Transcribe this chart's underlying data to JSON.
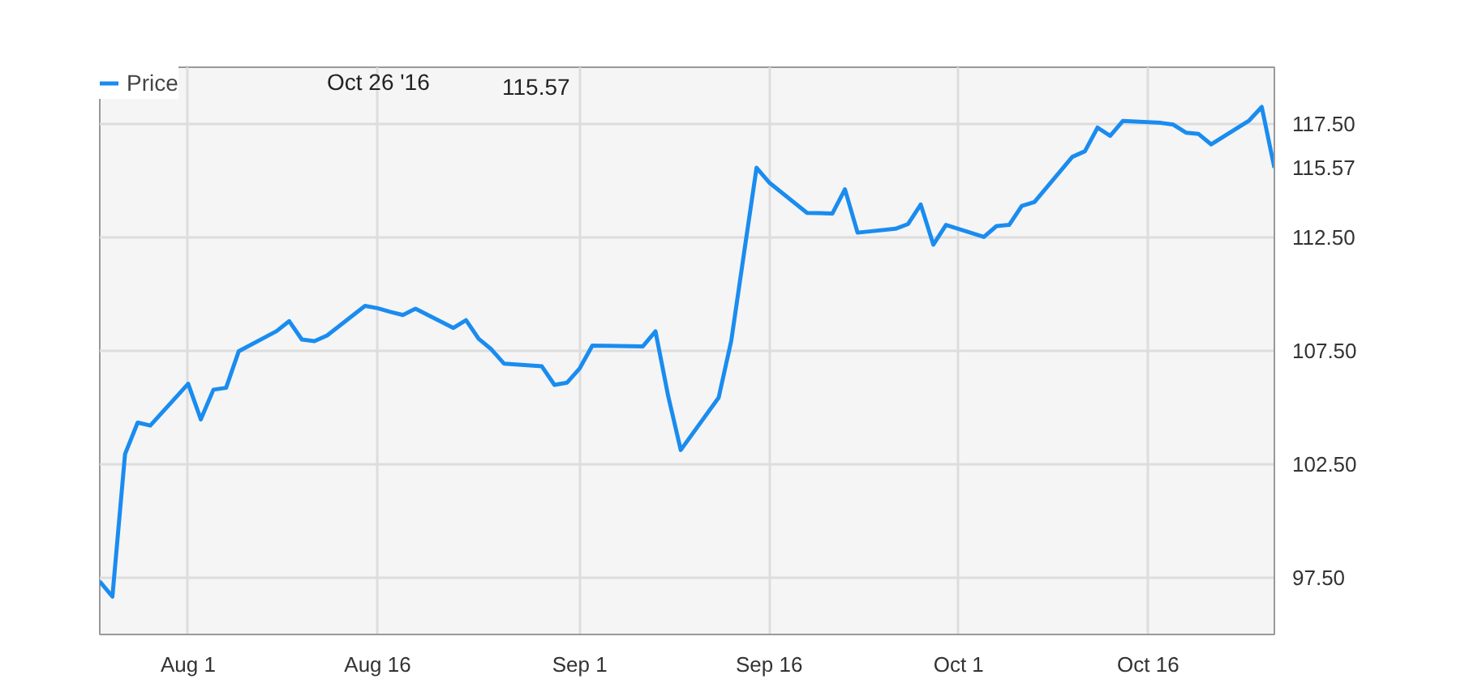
{
  "chart_data": {
    "type": "line",
    "x": [
      "2016-07-25",
      "2016-07-26",
      "2016-07-27",
      "2016-07-28",
      "2016-07-29",
      "2016-08-01",
      "2016-08-02",
      "2016-08-03",
      "2016-08-04",
      "2016-08-05",
      "2016-08-08",
      "2016-08-09",
      "2016-08-10",
      "2016-08-11",
      "2016-08-12",
      "2016-08-15",
      "2016-08-16",
      "2016-08-17",
      "2016-08-18",
      "2016-08-19",
      "2016-08-22",
      "2016-08-23",
      "2016-08-24",
      "2016-08-25",
      "2016-08-26",
      "2016-08-29",
      "2016-08-30",
      "2016-08-31",
      "2016-09-01",
      "2016-09-02",
      "2016-09-06",
      "2016-09-07",
      "2016-09-08",
      "2016-09-09",
      "2016-09-12",
      "2016-09-13",
      "2016-09-14",
      "2016-09-15",
      "2016-09-16",
      "2016-09-19",
      "2016-09-20",
      "2016-09-21",
      "2016-09-22",
      "2016-09-23",
      "2016-09-26",
      "2016-09-27",
      "2016-09-28",
      "2016-09-29",
      "2016-09-30",
      "2016-10-03",
      "2016-10-04",
      "2016-10-05",
      "2016-10-06",
      "2016-10-07",
      "2016-10-10",
      "2016-10-11",
      "2016-10-12",
      "2016-10-13",
      "2016-10-14",
      "2016-10-17",
      "2016-10-18",
      "2016-10-19",
      "2016-10-20",
      "2016-10-21",
      "2016-10-24",
      "2016-10-25",
      "2016-10-26"
    ],
    "series": [
      {
        "name": "Price",
        "color": "#1a8cf0",
        "values": [
          97.34,
          96.67,
          102.95,
          104.34,
          104.21,
          106.05,
          104.48,
          105.79,
          105.87,
          107.48,
          108.37,
          108.81,
          108.0,
          107.93,
          108.18,
          109.48,
          109.38,
          109.22,
          109.08,
          109.36,
          108.51,
          108.85,
          108.03,
          107.57,
          106.94,
          106.82,
          106.0,
          106.1,
          106.73,
          107.73,
          107.7,
          108.36,
          105.52,
          103.13,
          105.44,
          107.95,
          111.77,
          115.57,
          114.92,
          113.58,
          113.57,
          113.55,
          114.62,
          112.71,
          112.88,
          113.09,
          113.95,
          112.18,
          113.05,
          112.52,
          113.0,
          113.05,
          113.89,
          114.06,
          116.05,
          116.3,
          117.34,
          116.98,
          117.63,
          117.55,
          117.47,
          117.12,
          117.06,
          116.6,
          117.65,
          118.25,
          115.57
        ]
      }
    ],
    "xlim": [
      "2016-07-25",
      "2016-10-26"
    ],
    "xticks": [
      {
        "value": "2016-08-01",
        "label": "Aug 1"
      },
      {
        "value": "2016-08-16",
        "label": "Aug 16"
      },
      {
        "value": "2016-09-01",
        "label": "Sep 1"
      },
      {
        "value": "2016-09-16",
        "label": "Sep 16"
      },
      {
        "value": "2016-10-01",
        "label": "Oct 1"
      },
      {
        "value": "2016-10-16",
        "label": "Oct 16"
      }
    ],
    "ylim": [
      95,
      120
    ],
    "yticks": [
      {
        "value": 97.5,
        "label": "97.50"
      },
      {
        "value": 102.5,
        "label": "102.50"
      },
      {
        "value": 107.5,
        "label": "107.50"
      },
      {
        "value": 112.5,
        "label": "112.50"
      },
      {
        "value": 115.57,
        "label": "115.57"
      },
      {
        "value": 117.5,
        "label": "117.50"
      }
    ],
    "annotations": [
      "Oct 26 '16",
      "115.57"
    ],
    "grid": true,
    "legend": "top left",
    "marker": "none",
    "line_style": "solid"
  }
}
